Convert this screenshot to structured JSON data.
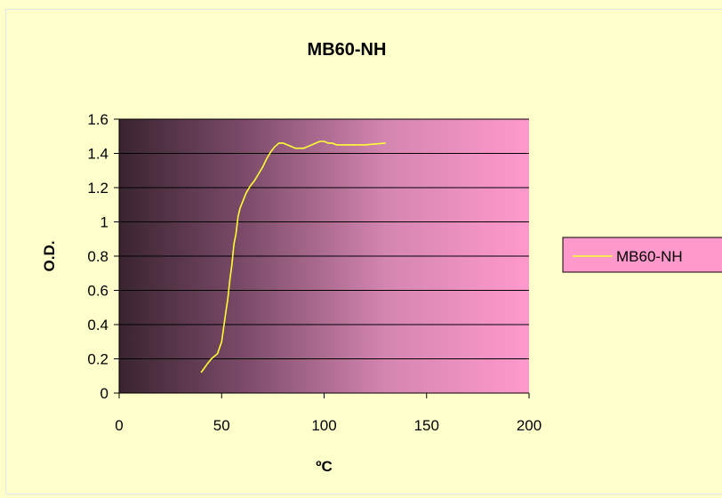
{
  "chart_data": {
    "type": "line",
    "title": "MB60-NH",
    "xlabel": "ºC",
    "ylabel": "O.D.",
    "xlim": [
      0,
      200
    ],
    "ylim": [
      0,
      1.6
    ],
    "x_ticks": [
      "0",
      "50",
      "100",
      "150",
      "200"
    ],
    "y_ticks": [
      "0",
      "0.2",
      "0.4",
      "0.6",
      "0.8",
      "1",
      "1.2",
      "1.4",
      "1.6"
    ],
    "grid": "horizontal",
    "legend_position": "right",
    "plot_background": "gradient dark-purple to pink",
    "series": [
      {
        "name": "MB60-NH",
        "color": "#ffff33",
        "x": [
          40,
          43,
          45,
          48,
          50,
          52,
          53,
          54,
          55,
          56,
          57,
          58,
          59,
          60,
          62,
          64,
          66,
          68,
          70,
          72,
          74,
          76,
          78,
          80,
          82,
          84,
          86,
          88,
          90,
          92,
          94,
          96,
          98,
          100,
          102,
          104,
          106,
          110,
          115,
          120,
          125,
          130
        ],
        "y": [
          0.12,
          0.17,
          0.2,
          0.23,
          0.3,
          0.47,
          0.55,
          0.66,
          0.75,
          0.87,
          0.93,
          1.03,
          1.08,
          1.11,
          1.17,
          1.21,
          1.24,
          1.28,
          1.32,
          1.37,
          1.41,
          1.44,
          1.46,
          1.46,
          1.45,
          1.44,
          1.43,
          1.43,
          1.43,
          1.44,
          1.45,
          1.46,
          1.47,
          1.47,
          1.46,
          1.46,
          1.45,
          1.45,
          1.45,
          1.45,
          1.455,
          1.46
        ]
      }
    ]
  }
}
